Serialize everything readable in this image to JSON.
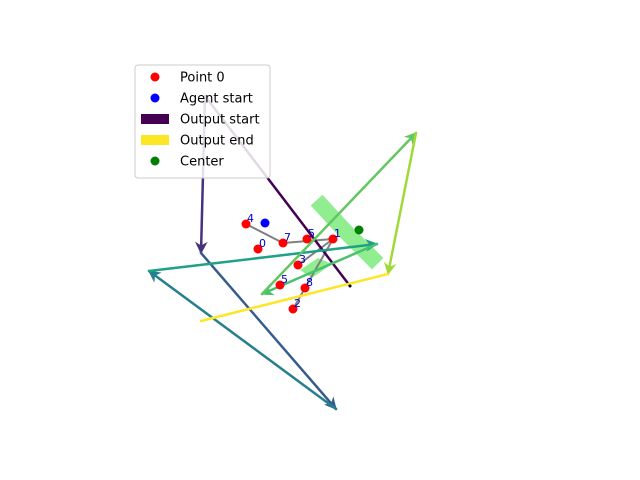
{
  "chart_data": {
    "type": "scatter",
    "title": "",
    "xlabel": "",
    "ylabel": "",
    "axes_visible": false,
    "grid": false,
    "xlim": [
      0,
      640
    ],
    "ylim": [
      0,
      480
    ],
    "points": [
      {
        "label": "0",
        "x": 258,
        "y": 249
      },
      {
        "label": "1",
        "x": 333,
        "y": 239
      },
      {
        "label": "2",
        "x": 293,
        "y": 309
      },
      {
        "label": "3",
        "x": 298,
        "y": 265
      },
      {
        "label": "4",
        "x": 246,
        "y": 224
      },
      {
        "label": "5",
        "x": 307,
        "y": 239
      },
      {
        "label": "5",
        "x": 280,
        "y": 285
      },
      {
        "label": "7",
        "x": 283,
        "y": 243
      },
      {
        "label": "8",
        "x": 305,
        "y": 288
      }
    ],
    "point_color": "#ff0000",
    "label_color": "#0000cc",
    "agent_start": {
      "x": 265,
      "y": 223,
      "color": "#0000ff"
    },
    "center": {
      "x": 359,
      "y": 230,
      "color": "#008000"
    },
    "gray_links": [
      [
        [
          246,
          224
        ],
        [
          283,
          243
        ]
      ],
      [
        [
          283,
          243
        ],
        [
          333,
          239
        ]
      ],
      [
        [
          298,
          265
        ],
        [
          333,
          239
        ]
      ],
      [
        [
          305,
          288
        ],
        [
          333,
          239
        ]
      ],
      [
        [
          293,
          309
        ],
        [
          305,
          288
        ]
      ]
    ],
    "agent_path": [
      {
        "from": [
          205,
          96
        ],
        "to": [
          350,
          286
        ],
        "color": "#440154",
        "arrow": false
      },
      {
        "from": [
          205,
          96
        ],
        "to": [
          201,
          253
        ],
        "color": "#46327e",
        "arrow": true
      },
      {
        "from": [
          201,
          253
        ],
        "to": [
          336,
          409
        ],
        "color": "#365c8d",
        "arrow": true
      },
      {
        "from": [
          336,
          409
        ],
        "to": [
          149,
          271
        ],
        "color": "#277f8e",
        "arrow": true
      },
      {
        "from": [
          149,
          271
        ],
        "to": [
          377,
          244
        ],
        "color": "#1fa187",
        "arrow": true
      },
      {
        "from": [
          377,
          244
        ],
        "to": [
          262,
          294
        ],
        "color": "#4ac16d",
        "arrow": true
      },
      {
        "from": [
          262,
          294
        ],
        "to": [
          416,
          133
        ],
        "color": "#63c660",
        "arrow": true
      },
      {
        "from": [
          416,
          133
        ],
        "to": [
          388,
          274
        ],
        "color": "#a0da39",
        "arrow": true
      },
      {
        "from": [
          388,
          274
        ],
        "to": [
          201,
          321
        ],
        "color": "#fde725",
        "arrow": false
      }
    ],
    "green_region": {
      "color": "#90ee90",
      "centerline": [
        [
          322,
          206
        ],
        [
          346,
          232
        ],
        [
          372,
          258
        ]
      ],
      "lower_blob": [
        [
          300,
          270
        ],
        [
          318,
          258
        ],
        [
          332,
          264
        ],
        [
          312,
          278
        ]
      ]
    },
    "legend": {
      "position": "top-left",
      "entries": [
        {
          "label": "Point 0",
          "marker": "dot",
          "color": "#ff0000"
        },
        {
          "label": "Agent start",
          "marker": "dot",
          "color": "#0000ff"
        },
        {
          "label": "Output start",
          "marker": "patch",
          "color": "#440154"
        },
        {
          "label": "Output end",
          "marker": "patch",
          "color": "#fde725"
        },
        {
          "label": "Center",
          "marker": "dot",
          "color": "#008000"
        }
      ]
    }
  }
}
